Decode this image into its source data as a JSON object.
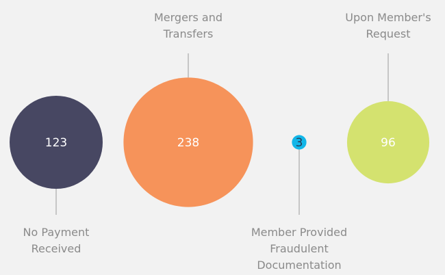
{
  "chart_data": {
    "type": "bubble",
    "categories": [
      "No Payment Received",
      "Mergers and Transfers",
      "Member Provided Fraudulent Documentation",
      "Upon Member's Request"
    ],
    "values": [
      123,
      238,
      3,
      96
    ],
    "colors": [
      "#474762",
      "#f6935a",
      "#12b6e8",
      "#d4e26f"
    ],
    "text_colors": [
      "#ffffff",
      "#ffffff",
      "#2b3a55",
      "#ffffff"
    ]
  }
}
